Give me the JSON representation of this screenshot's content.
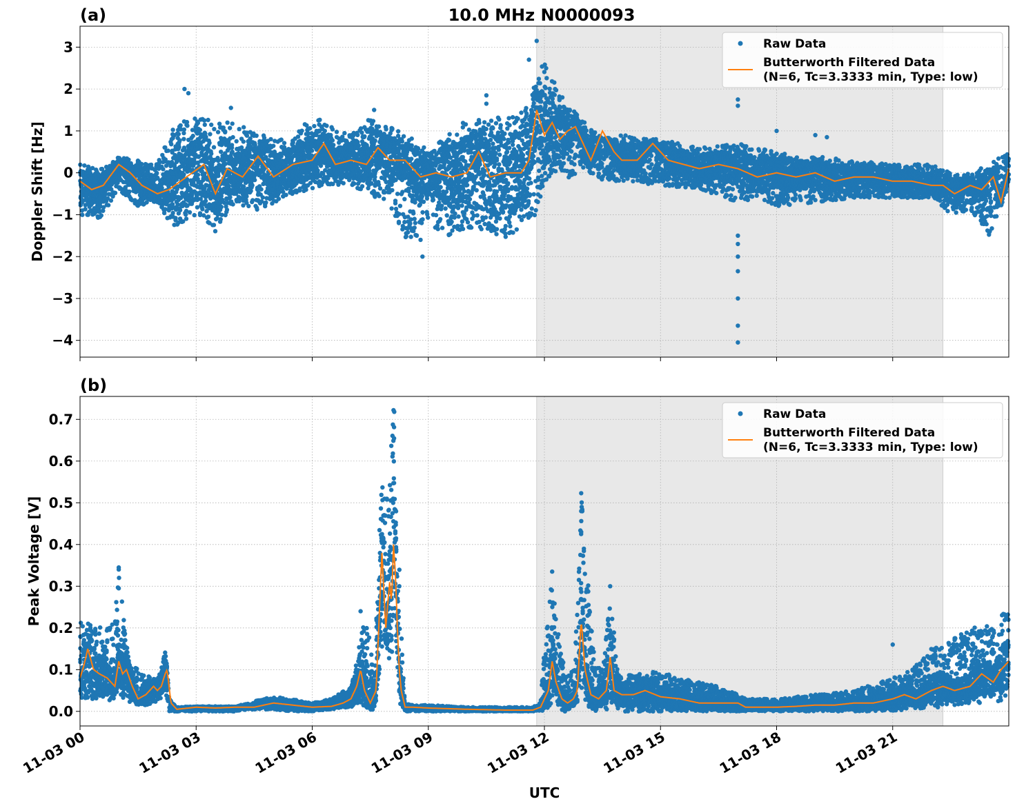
{
  "chart_data": [
    {
      "type": "scatter",
      "panel_label": "(a)",
      "title": "10.0 MHz N0000093",
      "ylabel": "Doppler Shift [Hz]",
      "xlabel": "",
      "xlim_hours": [
        0,
        24
      ],
      "ylim": [
        -4.4,
        3.5
      ],
      "yticks": [
        3,
        2,
        1,
        0,
        -1,
        -2,
        -3,
        -4
      ],
      "ytick_labels": [
        "3",
        "2",
        "1",
        "0",
        "−1",
        "−2",
        "−3",
        "−4"
      ],
      "grid": true,
      "legend_position": "top-right",
      "shaded_region_hours": [
        11.8,
        22.3
      ],
      "series": [
        {
          "name": "Raw Data",
          "kind": "scatter",
          "color": "#1f77b4",
          "envelope_hours": [
            0,
            0.5,
            1,
            1.5,
            2,
            2.4,
            3,
            3.5,
            4,
            4.5,
            5,
            5.5,
            6,
            6.5,
            7,
            7.5,
            8,
            8.5,
            9,
            9.5,
            10,
            10.5,
            11,
            11.5,
            11.8,
            12,
            12.3,
            12.6,
            13,
            13.5,
            14,
            15,
            16,
            17,
            17.5,
            18,
            19,
            20,
            21,
            22,
            22.5,
            23,
            23.5,
            24
          ],
          "envelope_low": [
            -1.0,
            -1.1,
            -0.4,
            -0.8,
            -0.7,
            -1.3,
            -1.0,
            -1.4,
            -0.7,
            -0.9,
            -0.8,
            -0.5,
            -0.4,
            -0.3,
            -0.3,
            -0.5,
            -0.8,
            -1.7,
            -1.2,
            -1.5,
            -1.3,
            -1.4,
            -1.6,
            -1.2,
            -1.0,
            -0.2,
            0.0,
            -0.2,
            0.1,
            -0.2,
            -0.2,
            -0.3,
            -0.4,
            -0.7,
            -0.6,
            -0.8,
            -0.7,
            -0.6,
            -0.6,
            -0.6,
            -1.0,
            -0.9,
            -1.5,
            -0.3
          ],
          "envelope_high": [
            0.2,
            0.1,
            0.4,
            0.3,
            0.2,
            1.1,
            1.4,
            1.2,
            1.2,
            1.0,
            0.8,
            0.8,
            1.4,
            1.1,
            0.9,
            1.3,
            1.1,
            0.9,
            0.7,
            0.9,
            1.3,
            1.4,
            1.3,
            1.5,
            2.5,
            2.6,
            2.1,
            1.6,
            1.3,
            0.8,
            0.9,
            0.8,
            0.6,
            0.7,
            0.6,
            0.5,
            0.4,
            0.3,
            0.2,
            0.2,
            0.0,
            0.0,
            0.2,
            0.5
          ],
          "outlier_points": [
            {
              "x": 2.7,
              "y": 2.0
            },
            {
              "x": 2.8,
              "y": 1.9
            },
            {
              "x": 3.9,
              "y": 1.55
            },
            {
              "x": 7.6,
              "y": 1.5
            },
            {
              "x": 8.7,
              "y": -1.5
            },
            {
              "x": 8.8,
              "y": -1.6
            },
            {
              "x": 8.85,
              "y": -2.0
            },
            {
              "x": 10.5,
              "y": 1.85
            },
            {
              "x": 10.5,
              "y": 1.65
            },
            {
              "x": 11.6,
              "y": 2.7
            },
            {
              "x": 11.8,
              "y": 3.15
            },
            {
              "x": 17.0,
              "y": 1.75
            },
            {
              "x": 17.0,
              "y": 1.6
            },
            {
              "x": 17.0,
              "y": -1.5
            },
            {
              "x": 17.0,
              "y": -1.7
            },
            {
              "x": 17.0,
              "y": -2.0
            },
            {
              "x": 17.0,
              "y": -2.35
            },
            {
              "x": 17.0,
              "y": -3.0
            },
            {
              "x": 17.0,
              "y": -3.65
            },
            {
              "x": 17.0,
              "y": -4.05
            },
            {
              "x": 18.0,
              "y": 1.0
            },
            {
              "x": 19.0,
              "y": 0.9
            },
            {
              "x": 19.3,
              "y": 0.85
            }
          ]
        },
        {
          "name": "Butterworth Filtered Data\n(N=6, Tc=3.3333 min, Type: low)",
          "kind": "line",
          "color": "#ff7f0e",
          "x": [
            0,
            0.3,
            0.6,
            1.0,
            1.3,
            1.6,
            2.0,
            2.3,
            2.6,
            2.9,
            3.2,
            3.5,
            3.8,
            4.2,
            4.6,
            5.0,
            5.5,
            6.0,
            6.3,
            6.6,
            7.0,
            7.4,
            7.7,
            8.0,
            8.4,
            8.8,
            9.2,
            9.6,
            10.0,
            10.3,
            10.6,
            11.0,
            11.4,
            11.6,
            11.8,
            12.0,
            12.2,
            12.4,
            12.6,
            12.8,
            13.0,
            13.2,
            13.5,
            13.8,
            14.0,
            14.4,
            14.8,
            15.2,
            15.6,
            16.0,
            16.5,
            17.0,
            17.5,
            18.0,
            18.5,
            19.0,
            19.5,
            20.0,
            20.5,
            21.0,
            21.5,
            22.0,
            22.3,
            22.6,
            23.0,
            23.3,
            23.6,
            23.8,
            24.0
          ],
          "y": [
            -0.2,
            -0.4,
            -0.3,
            0.2,
            0.0,
            -0.3,
            -0.5,
            -0.4,
            -0.2,
            0.0,
            0.2,
            -0.5,
            0.1,
            -0.1,
            0.4,
            -0.1,
            0.2,
            0.3,
            0.7,
            0.2,
            0.3,
            0.2,
            0.6,
            0.3,
            0.3,
            -0.1,
            0.0,
            -0.1,
            0.0,
            0.5,
            -0.1,
            0.0,
            0.0,
            0.3,
            1.5,
            0.9,
            1.2,
            0.8,
            1.0,
            1.1,
            0.7,
            0.3,
            1.0,
            0.5,
            0.3,
            0.3,
            0.7,
            0.3,
            0.2,
            0.1,
            0.2,
            0.1,
            -0.1,
            0.0,
            -0.1,
            0.0,
            -0.2,
            -0.1,
            -0.1,
            -0.2,
            -0.2,
            -0.3,
            -0.3,
            -0.5,
            -0.3,
            -0.4,
            -0.1,
            -0.7,
            0.1
          ]
        }
      ]
    },
    {
      "type": "scatter",
      "panel_label": "(b)",
      "title": "",
      "ylabel": "Peak Voltage [V]",
      "xlabel": "UTC",
      "xlim_hours": [
        0,
        24
      ],
      "ylim": [
        -0.035,
        0.755
      ],
      "yticks": [
        0.0,
        0.1,
        0.2,
        0.3,
        0.4,
        0.5,
        0.6,
        0.7
      ],
      "ytick_labels": [
        "0.0",
        "0.1",
        "0.2",
        "0.3",
        "0.4",
        "0.5",
        "0.6",
        "0.7"
      ],
      "xticks_hours": [
        0,
        3,
        6,
        9,
        12,
        15,
        18,
        21
      ],
      "xtick_labels": [
        "11-03 00",
        "11-03 03",
        "11-03 06",
        "11-03 09",
        "11-03 12",
        "11-03 15",
        "11-03 18",
        "11-03 21"
      ],
      "grid": true,
      "legend_position": "top-right",
      "shaded_region_hours": [
        11.8,
        22.3
      ],
      "series": [
        {
          "name": "Raw Data",
          "kind": "scatter",
          "color": "#1f77b4",
          "envelope_hours": [
            0,
            0.3,
            0.6,
            0.9,
            1.0,
            1.1,
            1.3,
            1.6,
            1.9,
            2.1,
            2.2,
            2.3,
            2.5,
            3.0,
            4.0,
            4.5,
            5.0,
            5.5,
            6.0,
            6.5,
            7.0,
            7.2,
            7.4,
            7.6,
            7.8,
            7.9,
            8.0,
            8.1,
            8.2,
            8.3,
            8.4,
            8.6,
            9.0,
            10.0,
            11.0,
            11.7,
            11.9,
            12.0,
            12.2,
            12.4,
            12.6,
            12.8,
            12.95,
            13.1,
            13.3,
            13.5,
            13.7,
            13.9,
            14.2,
            14.6,
            15.0,
            15.5,
            16.0,
            16.5,
            17.0,
            17.2,
            18.0,
            19.0,
            20.0,
            21.0,
            21.5,
            22.0,
            22.5,
            23.0,
            23.5,
            24.0
          ],
          "envelope_low": [
            0.02,
            0.03,
            0.02,
            0.03,
            0.05,
            0.03,
            0.02,
            0.01,
            0.02,
            0.03,
            0.04,
            0.0,
            0.0,
            0.0,
            0.0,
            0.005,
            0.005,
            0.0,
            0.0,
            0.005,
            0.01,
            0.02,
            0.01,
            0.0,
            0.1,
            0.15,
            0.1,
            0.15,
            0.05,
            0.0,
            0.0,
            0.0,
            0.0,
            0.0,
            0.0,
            0.0,
            0.0,
            0.0,
            0.02,
            0.0,
            0.0,
            0.01,
            0.05,
            0.01,
            0.0,
            0.01,
            0.0,
            0.0,
            0.0,
            0.0,
            0.0,
            0.0,
            0.0,
            0.0,
            0.0,
            0.0,
            0.0,
            0.0,
            0.0,
            0.0,
            0.005,
            0.01,
            0.01,
            0.02,
            0.02,
            0.03
          ],
          "envelope_high": [
            0.23,
            0.21,
            0.2,
            0.22,
            0.34,
            0.25,
            0.12,
            0.09,
            0.08,
            0.1,
            0.17,
            0.03,
            0.01,
            0.012,
            0.012,
            0.025,
            0.035,
            0.03,
            0.02,
            0.03,
            0.06,
            0.15,
            0.24,
            0.08,
            0.6,
            0.5,
            0.58,
            0.72,
            0.55,
            0.2,
            0.02,
            0.015,
            0.015,
            0.01,
            0.01,
            0.01,
            0.02,
            0.15,
            0.33,
            0.15,
            0.08,
            0.15,
            0.52,
            0.34,
            0.12,
            0.1,
            0.3,
            0.1,
            0.09,
            0.09,
            0.1,
            0.08,
            0.07,
            0.06,
            0.04,
            0.03,
            0.03,
            0.04,
            0.05,
            0.08,
            0.1,
            0.15,
            0.17,
            0.2,
            0.22,
            0.25
          ],
          "outlier_points": [
            {
              "x": 1.0,
              "y": 0.345
            },
            {
              "x": 1.0,
              "y": 0.34
            },
            {
              "x": 1.0,
              "y": 0.295
            },
            {
              "x": 7.25,
              "y": 0.24
            },
            {
              "x": 8.1,
              "y": 0.722
            },
            {
              "x": 8.12,
              "y": 0.718
            },
            {
              "x": 12.2,
              "y": 0.335
            },
            {
              "x": 12.95,
              "y": 0.523
            },
            {
              "x": 12.95,
              "y": 0.48
            },
            {
              "x": 12.95,
              "y": 0.43
            },
            {
              "x": 13.7,
              "y": 0.3
            },
            {
              "x": 21.0,
              "y": 0.16
            }
          ]
        },
        {
          "name": "Butterworth Filtered Data\n(N=6, Tc=3.3333 min, Type: low)",
          "kind": "line",
          "color": "#ff7f0e",
          "x": [
            0,
            0.1,
            0.2,
            0.35,
            0.5,
            0.7,
            0.9,
            1.0,
            1.1,
            1.2,
            1.35,
            1.5,
            1.7,
            1.9,
            2.0,
            2.1,
            2.2,
            2.25,
            2.35,
            2.5,
            3.0,
            3.5,
            4.0,
            4.5,
            5.0,
            5.5,
            6.0,
            6.5,
            6.8,
            7.0,
            7.15,
            7.25,
            7.35,
            7.5,
            7.65,
            7.8,
            7.9,
            8.0,
            8.05,
            8.1,
            8.15,
            8.2,
            8.25,
            8.3,
            8.4,
            8.6,
            9.0,
            10.0,
            11.0,
            11.7,
            11.9,
            12.1,
            12.2,
            12.3,
            12.45,
            12.6,
            12.75,
            12.85,
            12.95,
            13.05,
            13.2,
            13.4,
            13.6,
            13.7,
            13.8,
            14.0,
            14.3,
            14.6,
            15.0,
            15.5,
            16.0,
            16.5,
            17.0,
            17.2,
            18.0,
            18.5,
            19.0,
            19.5,
            20.0,
            20.5,
            21.0,
            21.3,
            21.6,
            22.0,
            22.3,
            22.6,
            23.0,
            23.3,
            23.6,
            23.8,
            24.0
          ],
          "y": [
            0.08,
            0.11,
            0.15,
            0.1,
            0.09,
            0.08,
            0.06,
            0.12,
            0.09,
            0.1,
            0.06,
            0.03,
            0.04,
            0.06,
            0.05,
            0.06,
            0.09,
            0.1,
            0.02,
            0.005,
            0.01,
            0.008,
            0.01,
            0.01,
            0.02,
            0.015,
            0.01,
            0.012,
            0.02,
            0.03,
            0.06,
            0.1,
            0.05,
            0.02,
            0.05,
            0.38,
            0.2,
            0.31,
            0.26,
            0.4,
            0.33,
            0.2,
            0.1,
            0.05,
            0.01,
            0.01,
            0.008,
            0.005,
            0.003,
            0.003,
            0.01,
            0.05,
            0.12,
            0.07,
            0.03,
            0.02,
            0.03,
            0.05,
            0.22,
            0.1,
            0.04,
            0.03,
            0.05,
            0.13,
            0.05,
            0.04,
            0.04,
            0.05,
            0.035,
            0.03,
            0.02,
            0.02,
            0.02,
            0.01,
            0.01,
            0.012,
            0.015,
            0.015,
            0.02,
            0.02,
            0.03,
            0.04,
            0.03,
            0.05,
            0.06,
            0.05,
            0.06,
            0.09,
            0.07,
            0.1,
            0.12
          ]
        }
      ]
    }
  ]
}
